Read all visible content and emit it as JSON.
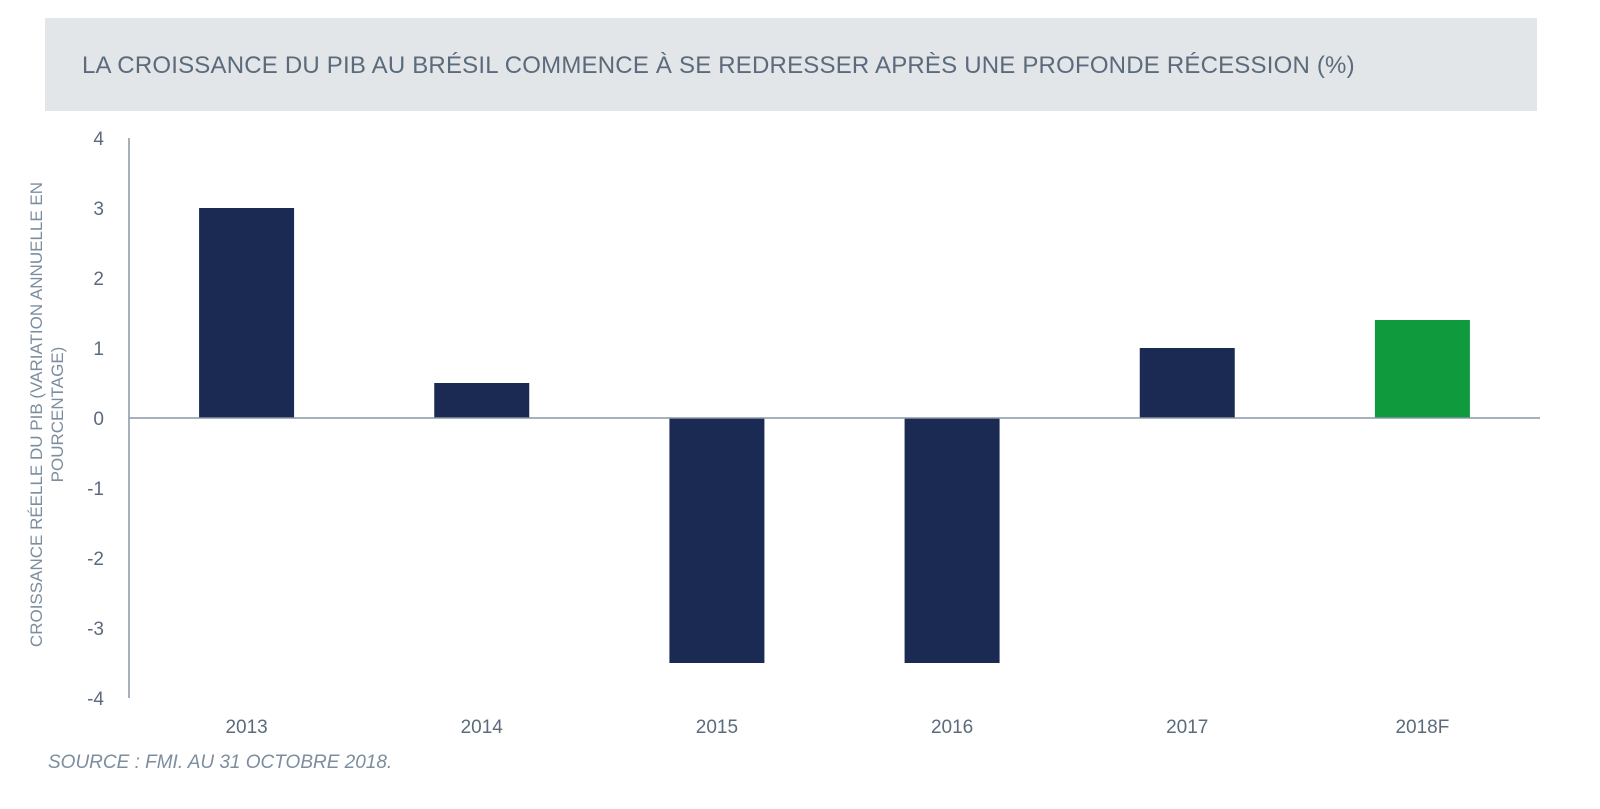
{
  "chart_data": {
    "type": "bar",
    "title": "LA CROISSANCE DU PIB AU BRÉSIL COMMENCE À SE REDRESSER APRÈS UNE PROFONDE RÉCESSION (%)",
    "xlabel": "",
    "ylabel": "CROISSANCE RÉELLE DU PIB (VARIATION ANNUELLE EN POURCENTAGE)",
    "categories": [
      "2013",
      "2014",
      "2015",
      "2016",
      "2017",
      "2018F"
    ],
    "values": [
      3.0,
      0.5,
      -3.5,
      -3.5,
      1.0,
      1.4
    ],
    "ylim": [
      -4,
      4
    ],
    "yticks": [
      "4",
      "3",
      "2",
      "1",
      "0",
      "-1",
      "-2",
      "-3",
      "-4"
    ],
    "grid": false,
    "legend": "none",
    "colors": {
      "actual": "#1a2a52",
      "forecast": "#0f9a3e"
    },
    "bar_colors": [
      "#1a2a52",
      "#1a2a52",
      "#1a2a52",
      "#1a2a52",
      "#1a2a52",
      "#0f9a3e"
    ]
  },
  "footer": {
    "source": "SOURCE : FMI. AU 31 OCTOBRE 2018."
  }
}
